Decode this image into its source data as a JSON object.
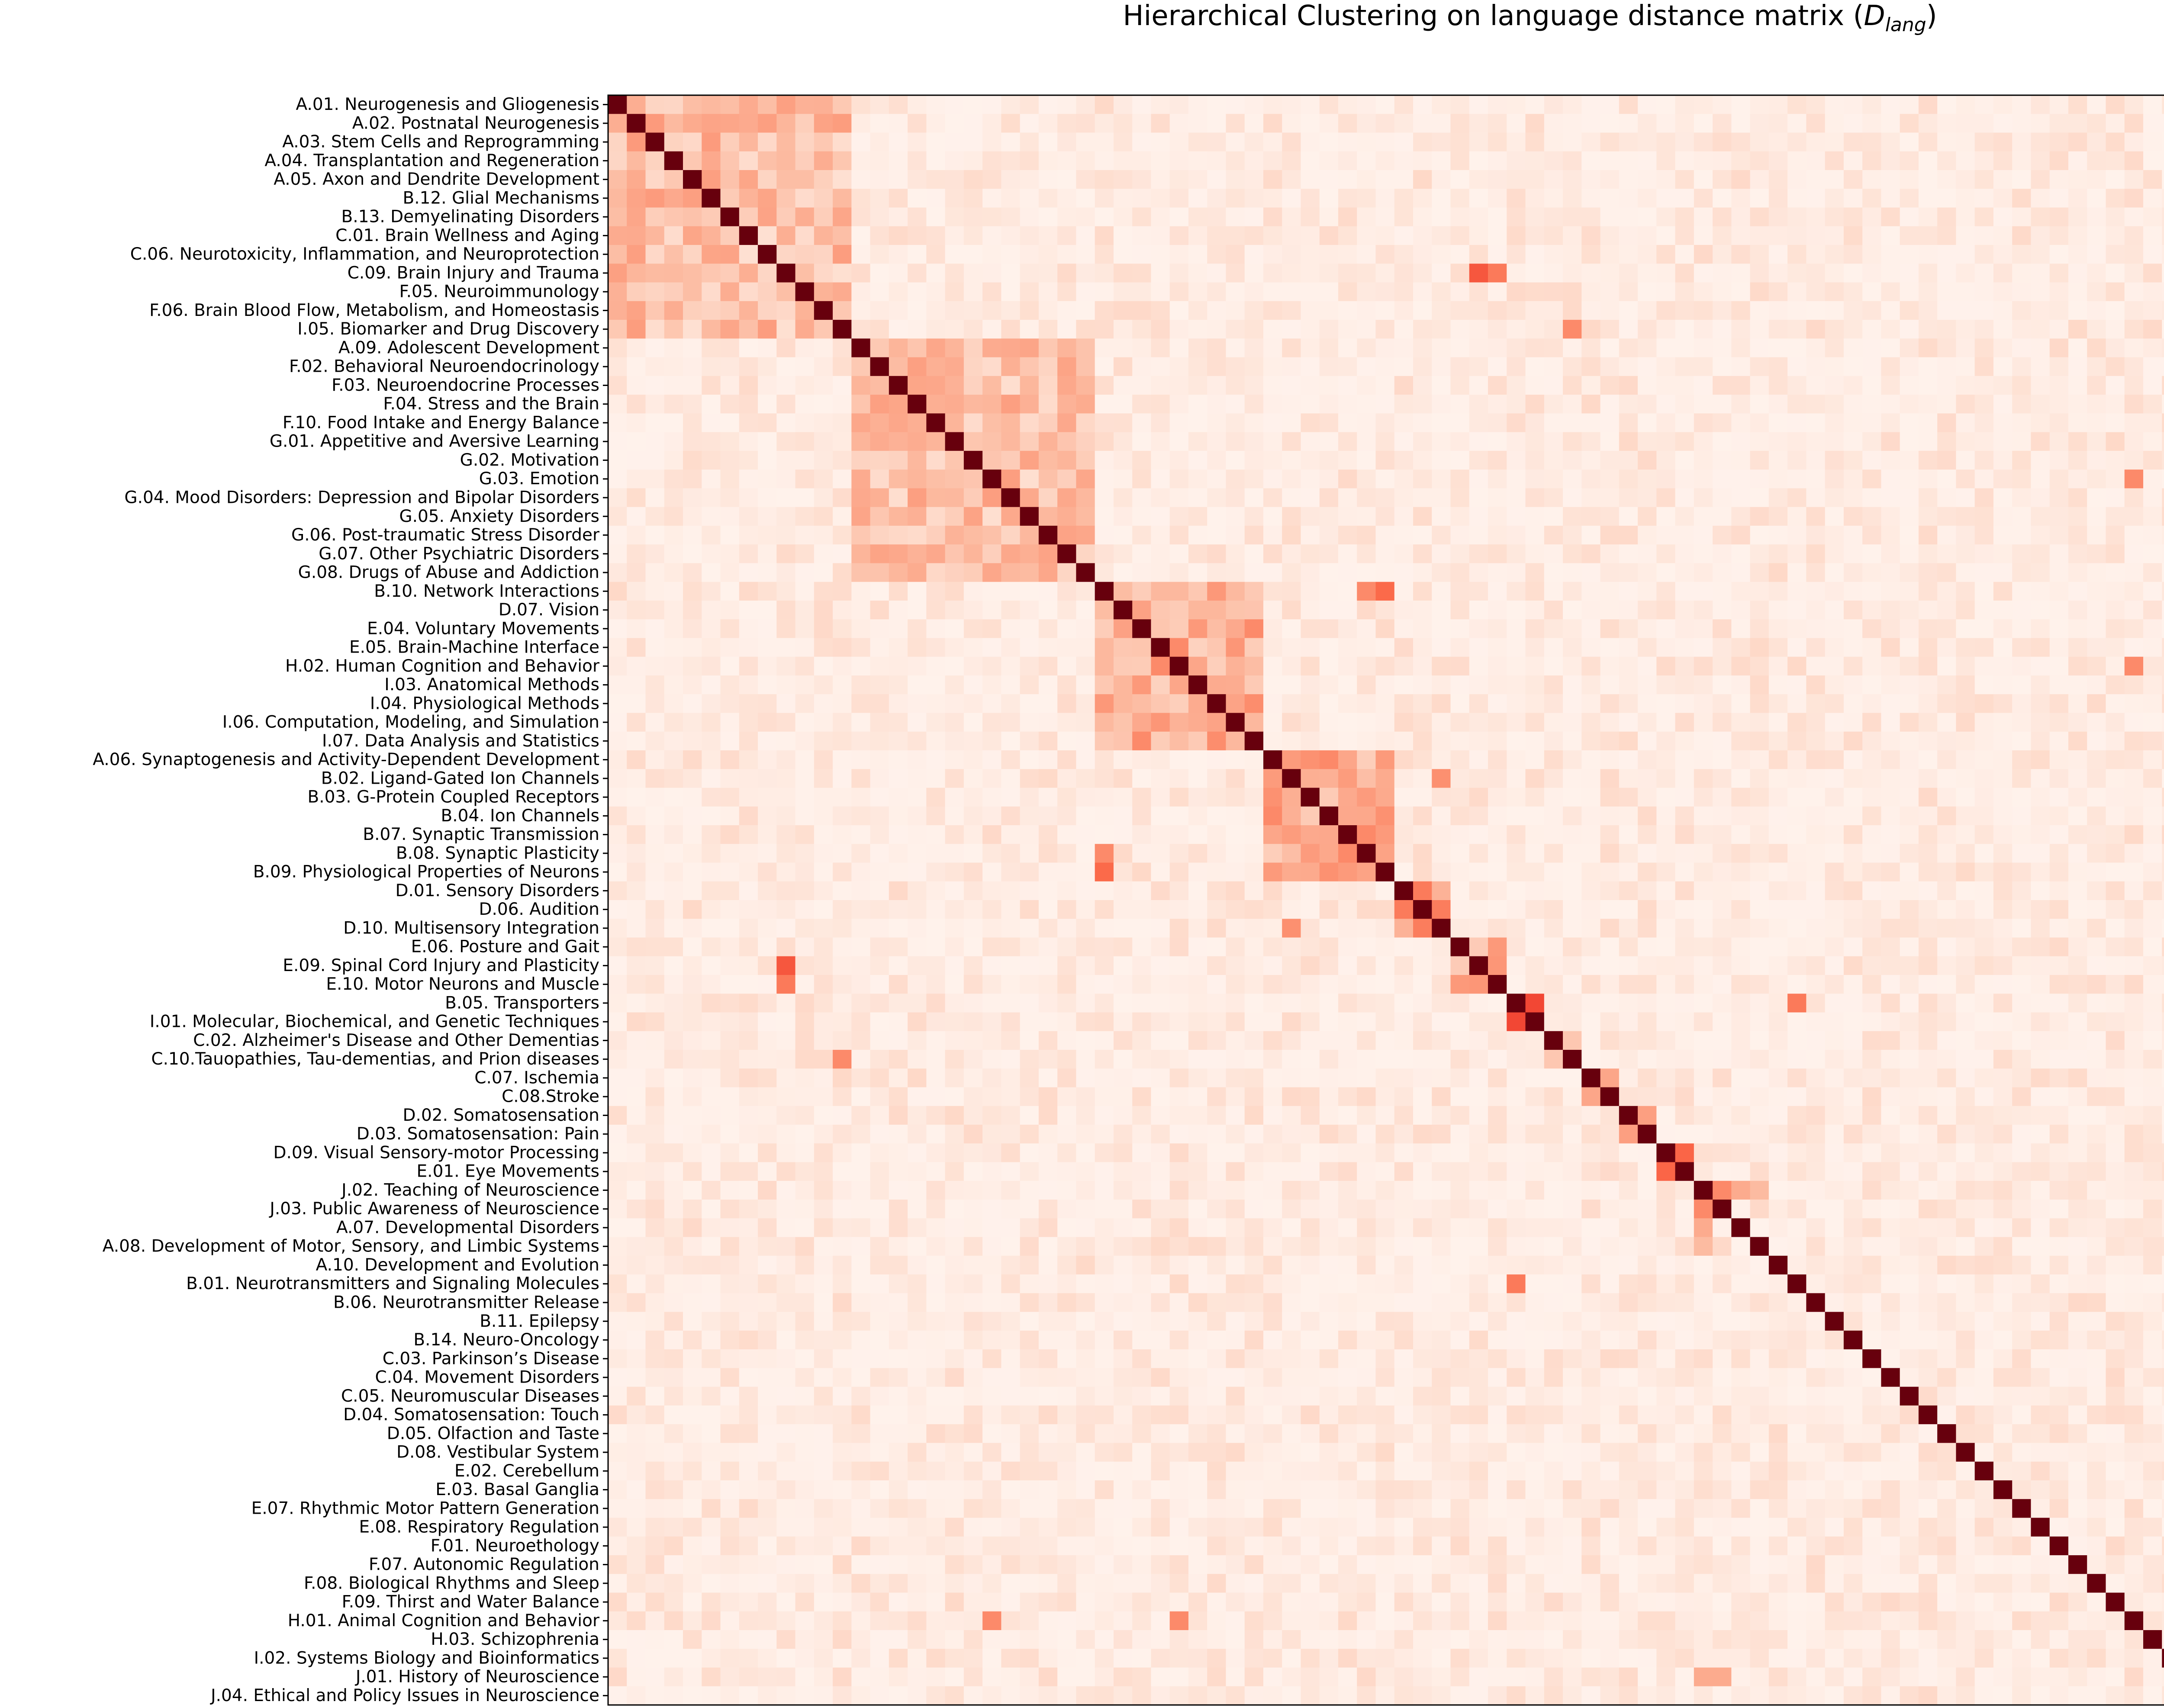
{
  "chart_data": {
    "type": "heatmap",
    "title": "Hierarchical Clustering on language distance matrix (",
    "title_math": "D",
    "title_math_sub": "lang",
    "title_end": ")",
    "xlabel": "",
    "ylabel": "",
    "x_ticks": "none",
    "colormap": [
      "#fff5f0",
      "#fee0d2",
      "#fcbba1",
      "#fc9272",
      "#fb6a4a",
      "#ef3b2c",
      "#cb181d",
      "#a50f15",
      "#67000d"
    ],
    "diagonal_value": 1.0,
    "labels": [
      "A.01. Neurogenesis and Gliogenesis",
      "A.02. Postnatal Neurogenesis",
      "A.03. Stem Cells and Reprogramming",
      "A.04. Transplantation and Regeneration",
      "A.05. Axon and Dendrite Development",
      "B.12. Glial Mechanisms",
      "B.13. Demyelinating Disorders",
      "C.01. Brain Wellness and Aging",
      "C.06. Neurotoxicity, Inflammation, and Neuroprotection",
      "C.09. Brain Injury and Trauma",
      "F.05. Neuroimmunology",
      "F.06. Brain Blood Flow, Metabolism, and Homeostasis",
      "I.05. Biomarker and Drug Discovery",
      "A.09. Adolescent Development",
      "F.02. Behavioral Neuroendocrinology",
      "F.03. Neuroendocrine Processes",
      "F.04. Stress and the Brain",
      "F.10. Food Intake and Energy Balance",
      "G.01. Appetitive and Aversive Learning",
      "G.02. Motivation",
      "G.03. Emotion",
      "G.04. Mood Disorders: Depression and Bipolar Disorders",
      "G.05. Anxiety Disorders",
      "G.06. Post-traumatic Stress Disorder",
      "G.07. Other Psychiatric Disorders",
      "G.08. Drugs of Abuse and Addiction",
      "B.10. Network Interactions",
      "D.07. Vision",
      "E.04. Voluntary Movements",
      "E.05. Brain-Machine Interface",
      "H.02. Human Cognition and Behavior",
      "I.03. Anatomical Methods",
      "I.04. Physiological Methods",
      "I.06. Computation, Modeling, and Simulation",
      "I.07. Data Analysis and Statistics",
      "A.06. Synaptogenesis and Activity-Dependent Development",
      "B.02. Ligand-Gated Ion Channels",
      "B.03. G-Protein Coupled Receptors",
      "B.04. Ion Channels",
      "B.07. Synaptic Transmission",
      "B.08. Synaptic Plasticity",
      "B.09. Physiological Properties of Neurons",
      "D.01. Sensory Disorders",
      "D.06. Audition",
      "D.10. Multisensory Integration",
      "E.06. Posture and Gait",
      "E.09. Spinal Cord Injury and Plasticity",
      "E.10. Motor Neurons and Muscle",
      "B.05. Transporters",
      "I.01. Molecular, Biochemical, and Genetic Techniques",
      "C.02. Alzheimer's Disease and Other Dementias",
      "C.10.Tauopathies, Tau-dementias, and Prion diseases",
      "C.07. Ischemia",
      "C.08.Stroke",
      "D.02. Somatosensation",
      "D.03. Somatosensation: Pain",
      "D.09. Visual Sensory-motor Processing",
      "E.01. Eye Movements",
      "J.02. Teaching of Neuroscience",
      "J.03. Public Awareness of Neuroscience",
      "A.07. Developmental Disorders",
      "A.08. Development of Motor, Sensory, and Limbic Systems",
      "A.10. Development and Evolution",
      "B.01. Neurotransmitters and Signaling Molecules",
      "B.06. Neurotransmitter Release",
      "B.11. Epilepsy",
      "B.14. Neuro-Oncology",
      "C.03. Parkinson’s Disease",
      "C.04. Movement Disorders",
      "C.05. Neuromuscular Diseases",
      "D.04. Somatosensation: Touch",
      "D.05. Olfaction and Taste",
      "D.08. Vestibular System",
      "E.02. Cerebellum",
      "E.03. Basal Ganglia",
      "E.07. Rhythmic Motor Pattern Generation",
      "E.08. Respiratory Regulation",
      "F.01. Neuroethology",
      "F.07. Autonomic Regulation",
      "F.08. Biological Rhythms and Sleep",
      "F.09. Thirst and Water Balance",
      "H.01. Animal Cognition and Behavior",
      "H.03. Schizophrenia",
      "I.02. Systems Biology and Bioinformatics",
      "J.01. History of Neuroscience",
      "J.04. Ethical and Policy Issues in Neuroscience"
    ],
    "clusters": [
      {
        "start": 0,
        "end": 12,
        "strength": 0.35
      },
      {
        "start": 13,
        "end": 25,
        "strength": 0.35
      },
      {
        "start": 26,
        "end": 34,
        "strength": 0.42
      },
      {
        "start": 35,
        "end": 41,
        "strength": 0.42
      },
      {
        "start": 42,
        "end": 44,
        "strength": 0.45
      },
      {
        "start": 45,
        "end": 47,
        "strength": 0.45
      },
      {
        "start": 48,
        "end": 49,
        "strength": 0.7
      },
      {
        "start": 50,
        "end": 51,
        "strength": 0.55
      },
      {
        "start": 52,
        "end": 53,
        "strength": 0.65
      },
      {
        "start": 54,
        "end": 55,
        "strength": 0.45
      },
      {
        "start": 56,
        "end": 57,
        "strength": 0.6
      },
      {
        "start": 58,
        "end": 59,
        "strength": 0.65
      }
    ],
    "highlights": [
      {
        "row": 60,
        "col": 58,
        "value": 0.3
      },
      {
        "row": 61,
        "col": 58,
        "value": 0.25
      },
      {
        "row": 81,
        "col": 20,
        "value": 0.4
      },
      {
        "row": 81,
        "col": 30,
        "value": 0.4
      },
      {
        "row": 9,
        "col": 46,
        "value": 0.55
      },
      {
        "row": 40,
        "col": 26,
        "value": 0.4
      },
      {
        "row": 41,
        "col": 26,
        "value": 0.5
      },
      {
        "row": 12,
        "col": 51,
        "value": 0.4
      },
      {
        "row": 9,
        "col": 47,
        "value": 0.45
      },
      {
        "row": 44,
        "col": 36,
        "value": 0.38
      },
      {
        "row": 63,
        "col": 48,
        "value": 0.45
      },
      {
        "row": 59,
        "col": 84,
        "value": 0.3
      },
      {
        "row": 58,
        "col": 84,
        "value": 0.3
      }
    ]
  }
}
